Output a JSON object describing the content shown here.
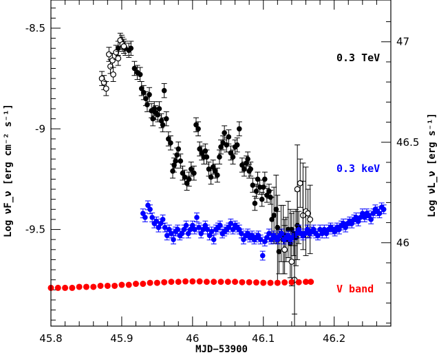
{
  "chart_data": {
    "type": "scatter",
    "xlabel": "MJD−53900",
    "ylabel_left": "Log νF_ν  [erg cm⁻² s⁻¹]",
    "ylabel_right": "Log νL_ν  [erg s⁻¹]",
    "xlim": [
      45.8,
      46.28
    ],
    "ylim": [
      -9.98,
      -8.36
    ],
    "ylim_right": [
      45.585,
      47.208
    ],
    "x_ticks": [
      "45.8",
      "45.9",
      "46",
      "46.1",
      "46.2"
    ],
    "x_tick_values": [
      45.8,
      45.9,
      46.0,
      46.1,
      46.2
    ],
    "y_ticks_left": [
      "-8.5",
      "-9",
      "-9.5"
    ],
    "y_tick_values_left": [
      -8.5,
      -9.0,
      -9.5
    ],
    "y_ticks_right": [
      "47",
      "46.5",
      "46"
    ],
    "y_tick_values_right": [
      47.0,
      46.5,
      46.0
    ],
    "series": [
      {
        "name": "0.3 TeV",
        "color": "#000000",
        "marker": "filled-circle",
        "points": [
          [
            45.895,
            -8.6
          ],
          [
            45.9,
            -8.57
          ],
          [
            45.905,
            -8.6
          ],
          [
            45.91,
            -8.61
          ],
          [
            45.913,
            -8.6
          ],
          [
            45.918,
            -8.7
          ],
          [
            45.922,
            -8.72
          ],
          [
            45.926,
            -8.73
          ],
          [
            45.928,
            -8.8
          ],
          [
            45.931,
            -8.82
          ],
          [
            45.934,
            -8.85
          ],
          [
            45.936,
            -8.88
          ],
          [
            45.939,
            -8.83
          ],
          [
            45.942,
            -8.91
          ],
          [
            45.944,
            -8.95
          ],
          [
            45.946,
            -8.9
          ],
          [
            45.948,
            -8.92
          ],
          [
            45.951,
            -8.93
          ],
          [
            45.953,
            -8.9
          ],
          [
            45.956,
            -8.96
          ],
          [
            45.958,
            -8.98
          ],
          [
            45.96,
            -8.81
          ],
          [
            45.963,
            -8.95
          ],
          [
            45.966,
            -9.05
          ],
          [
            45.969,
            -9.07
          ],
          [
            45.972,
            -9.21
          ],
          [
            45.974,
            -9.18
          ],
          [
            45.976,
            -9.16
          ],
          [
            45.978,
            -9.13
          ],
          [
            45.98,
            -9.1
          ],
          [
            45.983,
            -9.16
          ],
          [
            45.986,
            -9.22
          ],
          [
            45.989,
            -9.24
          ],
          [
            45.992,
            -9.27
          ],
          [
            45.995,
            -9.25
          ],
          [
            45.998,
            -9.2
          ],
          [
            46.002,
            -9.22
          ],
          [
            46.005,
            -8.98
          ],
          [
            46.008,
            -9.0
          ],
          [
            46.01,
            -9.1
          ],
          [
            46.013,
            -9.12
          ],
          [
            46.016,
            -9.14
          ],
          [
            46.018,
            -9.11
          ],
          [
            46.02,
            -9.14
          ],
          [
            46.023,
            -9.2
          ],
          [
            46.026,
            -9.24
          ],
          [
            46.029,
            -9.19
          ],
          [
            46.032,
            -9.21
          ],
          [
            46.035,
            -9.23
          ],
          [
            46.038,
            -9.14
          ],
          [
            46.04,
            -9.09
          ],
          [
            46.043,
            -9.07
          ],
          [
            46.045,
            -9.02
          ],
          [
            46.048,
            -9.08
          ],
          [
            46.051,
            -9.04
          ],
          [
            46.054,
            -9.12
          ],
          [
            46.057,
            -9.14
          ],
          [
            46.06,
            -9.09
          ],
          [
            46.063,
            -9.08
          ],
          [
            46.066,
            -9.0
          ],
          [
            46.07,
            -9.18
          ],
          [
            46.073,
            -9.2
          ],
          [
            46.076,
            -9.17
          ],
          [
            46.078,
            -9.15
          ],
          [
            46.08,
            -9.21
          ],
          [
            46.082,
            -9.2
          ],
          [
            46.085,
            -9.28
          ],
          [
            46.088,
            -9.37
          ],
          [
            46.09,
            -9.31
          ],
          [
            46.092,
            -9.25
          ],
          [
            46.095,
            -9.29
          ],
          [
            46.098,
            -9.35
          ],
          [
            46.1,
            -9.29
          ],
          [
            46.102,
            -9.25
          ],
          [
            46.105,
            -9.33
          ],
          [
            46.108,
            -9.31
          ],
          [
            46.11,
            -9.34
          ],
          [
            46.112,
            -9.45
          ],
          [
            46.115,
            -9.43
          ],
          [
            46.118,
            -9.4
          ],
          [
            46.12,
            -9.49
          ],
          [
            46.122,
            -9.61
          ],
          [
            46.125,
            -9.52
          ],
          [
            46.128,
            -9.55
          ],
          [
            46.13,
            -9.53
          ],
          [
            46.132,
            -9.55
          ],
          [
            46.135,
            -9.5
          ],
          [
            46.138,
            -9.57
          ],
          [
            46.14,
            -9.5
          ],
          [
            46.143,
            -9.52
          ],
          [
            46.146,
            -9.54
          ],
          [
            46.148,
            -9.48
          ],
          [
            46.15,
            -9.49
          ]
        ]
      },
      {
        "name": "0.3 TeV (open)",
        "color": "#000000",
        "marker": "open-circle",
        "points": [
          [
            45.872,
            -8.75
          ],
          [
            45.875,
            -8.77
          ],
          [
            45.878,
            -8.8
          ],
          [
            45.882,
            -8.63
          ],
          [
            45.884,
            -8.69
          ],
          [
            45.887,
            -8.66
          ],
          [
            45.888,
            -8.73
          ],
          [
            45.892,
            -8.62
          ],
          [
            45.895,
            -8.65
          ],
          [
            45.898,
            -8.56
          ],
          [
            45.901,
            -8.58
          ],
          [
            45.903,
            -8.59
          ],
          [
            46.14,
            -9.66
          ],
          [
            46.144,
            -9.75
          ],
          [
            46.148,
            -9.3
          ],
          [
            46.152,
            -9.27
          ],
          [
            46.156,
            -9.43
          ],
          [
            46.16,
            -9.41
          ],
          [
            46.163,
            -9.42
          ],
          [
            46.166,
            -9.45
          ],
          [
            46.12,
            -9.55
          ],
          [
            46.13,
            -9.6
          ]
        ]
      },
      {
        "name": "0.3 keV",
        "color": "#0000ff",
        "marker": "filled-circle",
        "points": [
          [
            45.93,
            -9.42
          ],
          [
            45.933,
            -9.44
          ],
          [
            45.937,
            -9.38
          ],
          [
            45.94,
            -9.4
          ],
          [
            45.943,
            -9.44
          ],
          [
            45.946,
            -9.47
          ],
          [
            45.949,
            -9.46
          ],
          [
            45.952,
            -9.49
          ],
          [
            45.955,
            -9.47
          ],
          [
            45.958,
            -9.45
          ],
          [
            45.961,
            -9.49
          ],
          [
            45.964,
            -9.53
          ],
          [
            45.967,
            -9.5
          ],
          [
            45.97,
            -9.52
          ],
          [
            45.973,
            -9.55
          ],
          [
            45.976,
            -9.51
          ],
          [
            45.979,
            -9.5
          ],
          [
            45.982,
            -9.53
          ],
          [
            45.985,
            -9.52
          ],
          [
            45.988,
            -9.5
          ],
          [
            45.991,
            -9.48
          ],
          [
            45.994,
            -9.52
          ],
          [
            45.997,
            -9.5
          ],
          [
            46.0,
            -9.48
          ],
          [
            46.003,
            -9.5
          ],
          [
            46.006,
            -9.44
          ],
          [
            46.009,
            -9.49
          ],
          [
            46.012,
            -9.52
          ],
          [
            46.015,
            -9.5
          ],
          [
            46.018,
            -9.48
          ],
          [
            46.021,
            -9.5
          ],
          [
            46.024,
            -9.53
          ],
          [
            46.027,
            -9.51
          ],
          [
            46.03,
            -9.55
          ],
          [
            46.033,
            -9.5
          ],
          [
            46.036,
            -9.49
          ],
          [
            46.039,
            -9.48
          ],
          [
            46.042,
            -9.52
          ],
          [
            46.045,
            -9.51
          ],
          [
            46.048,
            -9.5
          ],
          [
            46.051,
            -9.49
          ],
          [
            46.054,
            -9.47
          ],
          [
            46.057,
            -9.5
          ],
          [
            46.06,
            -9.48
          ],
          [
            46.063,
            -9.49
          ],
          [
            46.066,
            -9.5
          ],
          [
            46.069,
            -9.52
          ],
          [
            46.072,
            -9.55
          ],
          [
            46.075,
            -9.53
          ],
          [
            46.078,
            -9.52
          ],
          [
            46.081,
            -9.54
          ],
          [
            46.084,
            -9.53
          ],
          [
            46.087,
            -9.55
          ],
          [
            46.09,
            -9.54
          ],
          [
            46.093,
            -9.53
          ],
          [
            46.096,
            -9.55
          ],
          [
            46.099,
            -9.63
          ],
          [
            46.102,
            -9.56
          ],
          [
            46.105,
            -9.54
          ],
          [
            46.108,
            -9.52
          ],
          [
            46.111,
            -9.55
          ],
          [
            46.114,
            -9.53
          ],
          [
            46.117,
            -9.54
          ],
          [
            46.12,
            -9.55
          ],
          [
            46.123,
            -9.53
          ],
          [
            46.126,
            -9.52
          ],
          [
            46.129,
            -9.55
          ],
          [
            46.132,
            -9.54
          ],
          [
            46.135,
            -9.53
          ],
          [
            46.138,
            -9.55
          ],
          [
            46.141,
            -9.54
          ],
          [
            46.144,
            -9.53
          ],
          [
            46.147,
            -9.52
          ],
          [
            46.15,
            -9.5
          ],
          [
            46.153,
            -9.52
          ],
          [
            46.156,
            -9.53
          ],
          [
            46.159,
            -9.52
          ],
          [
            46.162,
            -9.5
          ],
          [
            46.165,
            -9.52
          ],
          [
            46.168,
            -9.51
          ],
          [
            46.171,
            -9.5
          ],
          [
            46.174,
            -9.52
          ],
          [
            46.177,
            -9.53
          ],
          [
            46.18,
            -9.5
          ],
          [
            46.183,
            -9.52
          ],
          [
            46.186,
            -9.5
          ],
          [
            46.189,
            -9.52
          ],
          [
            46.192,
            -9.5
          ],
          [
            46.195,
            -9.49
          ],
          [
            46.198,
            -9.5
          ],
          [
            46.201,
            -9.51
          ],
          [
            46.204,
            -9.49
          ],
          [
            46.207,
            -9.5
          ],
          [
            46.21,
            -9.48
          ],
          [
            46.213,
            -9.47
          ],
          [
            46.216,
            -9.49
          ],
          [
            46.219,
            -9.47
          ],
          [
            46.222,
            -9.46
          ],
          [
            46.225,
            -9.47
          ],
          [
            46.228,
            -9.45
          ],
          [
            46.231,
            -9.44
          ],
          [
            46.234,
            -9.46
          ],
          [
            46.237,
            -9.44
          ],
          [
            46.24,
            -9.42
          ],
          [
            46.243,
            -9.44
          ],
          [
            46.246,
            -9.42
          ],
          [
            46.249,
            -9.43
          ],
          [
            46.252,
            -9.45
          ],
          [
            46.255,
            -9.42
          ],
          [
            46.258,
            -9.4
          ],
          [
            46.261,
            -9.41
          ],
          [
            46.264,
            -9.42
          ],
          [
            46.267,
            -9.39
          ],
          [
            46.27,
            -9.4
          ]
        ]
      },
      {
        "name": "V band",
        "color": "#ff0000",
        "marker": "filled-circle",
        "points": [
          [
            45.8,
            -9.79
          ],
          [
            45.81,
            -9.79
          ],
          [
            45.82,
            -9.79
          ],
          [
            45.83,
            -9.79
          ],
          [
            45.84,
            -9.785
          ],
          [
            45.85,
            -9.785
          ],
          [
            45.86,
            -9.785
          ],
          [
            45.87,
            -9.78
          ],
          [
            45.88,
            -9.78
          ],
          [
            45.89,
            -9.78
          ],
          [
            45.9,
            -9.775
          ],
          [
            45.91,
            -9.775
          ],
          [
            45.92,
            -9.77
          ],
          [
            45.93,
            -9.77
          ],
          [
            45.94,
            -9.765
          ],
          [
            45.95,
            -9.765
          ],
          [
            45.96,
            -9.762
          ],
          [
            45.97,
            -9.76
          ],
          [
            45.98,
            -9.76
          ],
          [
            45.99,
            -9.758
          ],
          [
            46.0,
            -9.758
          ],
          [
            46.01,
            -9.758
          ],
          [
            46.02,
            -9.76
          ],
          [
            46.03,
            -9.76
          ],
          [
            46.04,
            -9.76
          ],
          [
            46.05,
            -9.76
          ],
          [
            46.06,
            -9.76
          ],
          [
            46.07,
            -9.762
          ],
          [
            46.08,
            -9.762
          ],
          [
            46.09,
            -9.763
          ],
          [
            46.1,
            -9.765
          ],
          [
            46.11,
            -9.765
          ],
          [
            46.12,
            -9.765
          ],
          [
            46.13,
            -9.763
          ],
          [
            46.14,
            -9.762
          ],
          [
            46.15,
            -9.762
          ],
          [
            46.16,
            -9.76
          ],
          [
            46.167,
            -9.76
          ]
        ]
      }
    ],
    "labels": {
      "tev": "0.3 TeV",
      "kev": "0.3 keV",
      "vband": "V band"
    },
    "colors": {
      "tev": "#000000",
      "kev": "#0000ff",
      "vband": "#ff0000"
    }
  }
}
